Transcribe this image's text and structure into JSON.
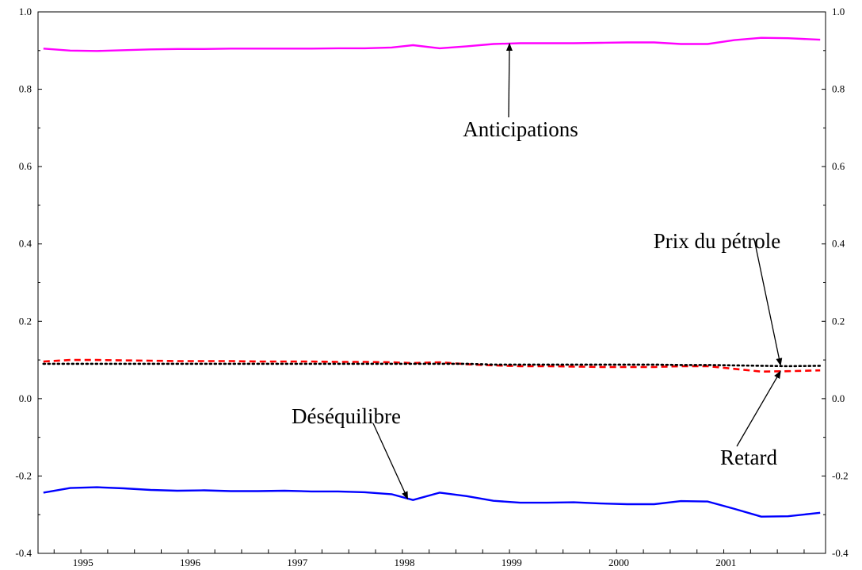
{
  "chart_data": {
    "type": "line",
    "title": "",
    "xlabel": "",
    "ylabel": "",
    "ylim": [
      -0.4,
      1.0
    ],
    "xlim": [
      1994.6,
      2001.95
    ],
    "yticks": [
      -0.4,
      -0.2,
      0.0,
      0.2,
      0.4,
      0.6,
      0.8,
      1.0
    ],
    "ytick_labels": [
      "-0.4",
      "-0.2",
      "0.0",
      "0.2",
      "0.4",
      "0.6",
      "0.8",
      "1.0"
    ],
    "xtick_labels": [
      "1995",
      "1996",
      "1997",
      "1998",
      "1999",
      "2000",
      "2001"
    ],
    "grid": false,
    "legend": "none",
    "series": [
      {
        "name": "Anticipations",
        "color": "#ff00ff",
        "style": "solid",
        "x": [
          1994.65,
          1994.9,
          1995.15,
          1995.4,
          1995.65,
          1995.9,
          1996.15,
          1996.4,
          1996.65,
          1996.9,
          1997.15,
          1997.4,
          1997.65,
          1997.9,
          1998.1,
          1998.35,
          1998.6,
          1998.85,
          1999.1,
          1999.35,
          1999.6,
          1999.85,
          2000.1,
          2000.35,
          2000.6,
          2000.85,
          2001.1,
          2001.35,
          2001.6,
          2001.9
        ],
        "values": [
          0.905,
          0.9,
          0.899,
          0.901,
          0.903,
          0.904,
          0.904,
          0.905,
          0.905,
          0.905,
          0.905,
          0.906,
          0.906,
          0.908,
          0.914,
          0.906,
          0.911,
          0.917,
          0.919,
          0.919,
          0.919,
          0.92,
          0.921,
          0.921,
          0.917,
          0.917,
          0.927,
          0.933,
          0.932,
          0.928
        ]
      },
      {
        "name": "Retard",
        "color": "#ff0000",
        "style": "dashed",
        "x": [
          1994.65,
          1994.9,
          1995.15,
          1995.4,
          1995.65,
          1995.9,
          1996.15,
          1996.4,
          1996.65,
          1996.9,
          1997.15,
          1997.4,
          1997.65,
          1997.9,
          1998.1,
          1998.35,
          1998.6,
          1998.85,
          1999.1,
          1999.35,
          1999.6,
          1999.85,
          2000.1,
          2000.35,
          2000.6,
          2000.85,
          2001.1,
          2001.35,
          2001.6,
          2001.9
        ],
        "values": [
          0.096,
          0.1,
          0.1,
          0.099,
          0.098,
          0.097,
          0.097,
          0.097,
          0.096,
          0.096,
          0.096,
          0.095,
          0.095,
          0.094,
          0.092,
          0.094,
          0.089,
          0.086,
          0.084,
          0.084,
          0.083,
          0.082,
          0.082,
          0.082,
          0.084,
          0.084,
          0.077,
          0.07,
          0.071,
          0.073
        ]
      },
      {
        "name": "Prix du pétrole",
        "color": "#000000",
        "style": "dotted",
        "x": [
          1994.65,
          1994.9,
          1995.15,
          1995.4,
          1995.65,
          1995.9,
          1996.15,
          1996.4,
          1996.65,
          1996.9,
          1997.15,
          1997.4,
          1997.65,
          1997.9,
          1998.1,
          1998.35,
          1998.6,
          1998.85,
          1999.1,
          1999.35,
          1999.6,
          1999.85,
          2000.1,
          2000.35,
          2000.6,
          2000.85,
          2001.1,
          2001.35,
          2001.6,
          2001.9
        ],
        "values": [
          0.09,
          0.09,
          0.09,
          0.09,
          0.09,
          0.09,
          0.09,
          0.09,
          0.09,
          0.09,
          0.09,
          0.09,
          0.09,
          0.09,
          0.09,
          0.09,
          0.09,
          0.088,
          0.088,
          0.088,
          0.088,
          0.088,
          0.088,
          0.088,
          0.087,
          0.087,
          0.086,
          0.085,
          0.084,
          0.085
        ]
      },
      {
        "name": "Déséquilibre",
        "color": "#0000ff",
        "style": "solid",
        "x": [
          1994.65,
          1994.9,
          1995.15,
          1995.4,
          1995.65,
          1995.9,
          1996.15,
          1996.4,
          1996.65,
          1996.9,
          1997.15,
          1997.4,
          1997.65,
          1997.9,
          1998.1,
          1998.35,
          1998.6,
          1998.85,
          1999.1,
          1999.35,
          1999.6,
          1999.85,
          2000.1,
          2000.35,
          2000.6,
          2000.85,
          2001.1,
          2001.35,
          2001.6,
          2001.9
        ],
        "values": [
          -0.243,
          -0.231,
          -0.229,
          -0.232,
          -0.236,
          -0.238,
          -0.237,
          -0.239,
          -0.239,
          -0.238,
          -0.24,
          -0.24,
          -0.242,
          -0.247,
          -0.262,
          -0.243,
          -0.252,
          -0.264,
          -0.269,
          -0.269,
          -0.268,
          -0.271,
          -0.273,
          -0.273,
          -0.265,
          -0.266,
          -0.285,
          -0.305,
          -0.304,
          -0.295
        ]
      }
    ],
    "annotations": [
      {
        "text": "Anticipations",
        "series": "Anticipations",
        "target": [
          1999.0,
          0.918
        ]
      },
      {
        "text": "Prix du pétrole",
        "series": "Prix du pétrole",
        "target": [
          2001.53,
          0.086
        ]
      },
      {
        "text": "Retard",
        "series": "Retard",
        "target": [
          2001.53,
          0.071
        ]
      },
      {
        "text": "Déséquilibre",
        "series": "Déséquilibre",
        "target": [
          1998.05,
          -0.259
        ]
      }
    ]
  }
}
